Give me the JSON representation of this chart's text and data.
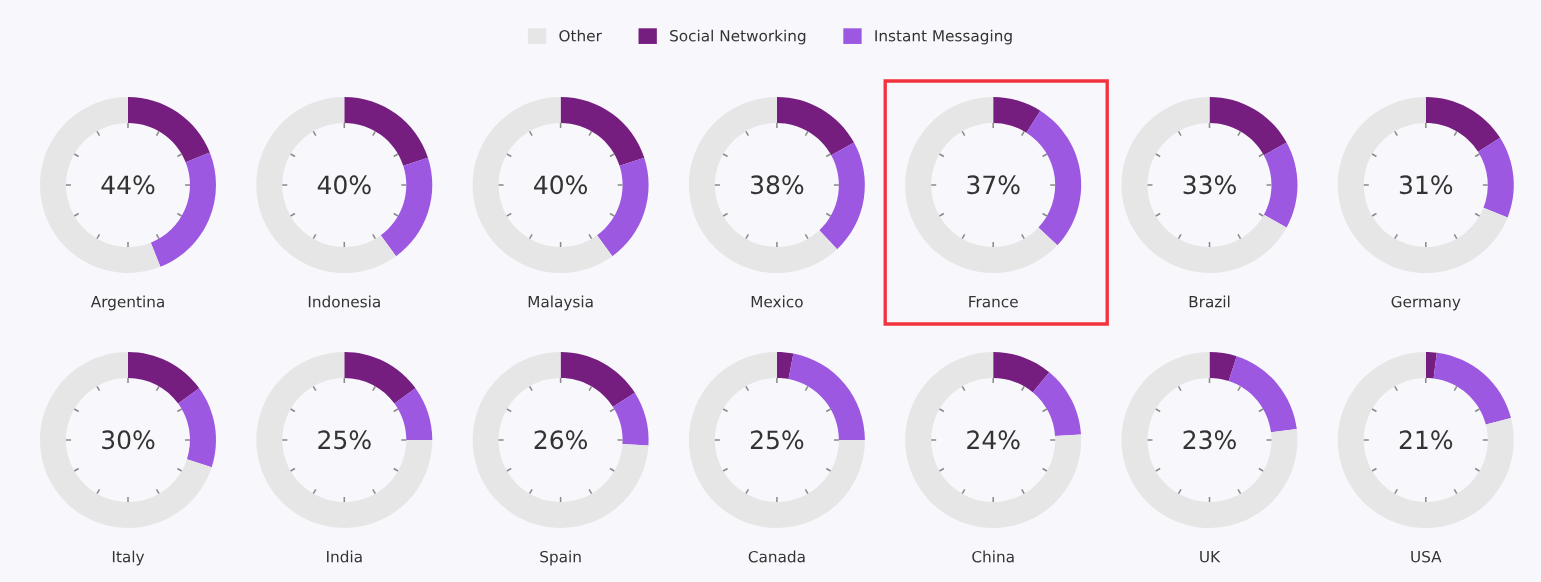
{
  "chart_data": [
    {
      "type": "donut",
      "title": "Argentina",
      "categories": [
        "Social Networking",
        "Instant Messaging",
        "Other"
      ],
      "values": [
        19,
        25,
        56
      ],
      "colors": [
        "#751e80",
        "#9d58e2",
        "#e6e6e6"
      ],
      "annotations": [
        "44%"
      ],
      "legend": "top"
    },
    {
      "type": "donut",
      "title": "Indonesia",
      "categories": [
        null,
        null,
        null
      ],
      "values": [
        20,
        20,
        60
      ],
      "colors": [
        "#751e80",
        "#9d58e2",
        "#e6e6e6"
      ],
      "annotations": [
        "40%"
      ]
    },
    {
      "type": "donut",
      "title": "Malaysia",
      "categories": [
        null,
        null,
        null
      ],
      "values": [
        20,
        20,
        60
      ],
      "colors": [
        "#751e80",
        "#9d58e2",
        "#e6e6e6"
      ],
      "annotations": [
        "40%"
      ]
    },
    {
      "type": "donut",
      "title": "Mexico",
      "categories": [
        null,
        null,
        null
      ],
      "values": [
        17,
        21,
        62
      ],
      "colors": [
        "#751e80",
        "#9d58e2",
        "#e6e6e6"
      ],
      "annotations": [
        "38%"
      ]
    },
    {
      "type": "donut",
      "title": "France",
      "categories": [
        null,
        null,
        null
      ],
      "values": [
        9,
        28,
        63
      ],
      "colors": [
        "#751e80",
        "#9d58e2",
        "#e6e6e6"
      ],
      "annotations": [
        "37%"
      ]
    },
    {
      "type": "donut",
      "title": "Brazil",
      "categories": [
        null,
        null,
        null
      ],
      "values": [
        17,
        16,
        67
      ],
      "colors": [
        "#751e80",
        "#9d58e2",
        "#e6e6e6"
      ],
      "annotations": [
        "33%"
      ]
    },
    {
      "type": "donut",
      "title": "Germany",
      "categories": [
        null,
        null,
        null
      ],
      "values": [
        16,
        15,
        69
      ],
      "colors": [
        "#751e80",
        "#9d58e2",
        "#e6e6e6"
      ],
      "annotations": [
        "31%"
      ]
    },
    {
      "type": "donut",
      "title": "Italy",
      "categories": [
        null,
        null,
        null
      ],
      "values": [
        15,
        15,
        70
      ],
      "colors": [
        "#751e80",
        "#9d58e2",
        "#e6e6e6"
      ],
      "annotations": [
        "30%"
      ]
    },
    {
      "type": "donut",
      "title": "India",
      "categories": [
        null,
        null,
        null
      ],
      "values": [
        15,
        10,
        75
      ],
      "colors": [
        "#751e80",
        "#9d58e2",
        "#e6e6e6"
      ],
      "annotations": [
        "25%"
      ]
    },
    {
      "type": "donut",
      "title": "Spain",
      "categories": [
        null,
        null,
        null
      ],
      "values": [
        16,
        10,
        74
      ],
      "colors": [
        "#751e80",
        "#9d58e2",
        "#e6e6e6"
      ],
      "annotations": [
        "26%"
      ]
    },
    {
      "type": "donut",
      "title": "Canada",
      "categories": [
        null,
        null,
        null
      ],
      "values": [
        3,
        22,
        75
      ],
      "colors": [
        "#751e80",
        "#9d58e2",
        "#e6e6e6"
      ],
      "annotations": [
        "25%"
      ]
    },
    {
      "type": "donut",
      "title": "China",
      "categories": [
        null,
        null,
        null
      ],
      "values": [
        11,
        13,
        76
      ],
      "colors": [
        "#751e80",
        "#9d58e2",
        "#e6e6e6"
      ],
      "annotations": [
        "24%"
      ]
    },
    {
      "type": "donut",
      "title": "UK",
      "categories": [
        null,
        null,
        null
      ],
      "values": [
        5,
        18,
        77
      ],
      "colors": [
        "#751e80",
        "#9d58e2",
        "#e6e6e6"
      ],
      "annotations": [
        "23%"
      ]
    },
    {
      "type": "donut",
      "title": "USA",
      "categories": [
        null,
        null,
        null
      ],
      "values": [
        2,
        19,
        79
      ],
      "colors": [
        "#751e80",
        "#9d58e2",
        "#e6e6e6"
      ],
      "annotations": [
        "21%"
      ]
    }
  ]
}
